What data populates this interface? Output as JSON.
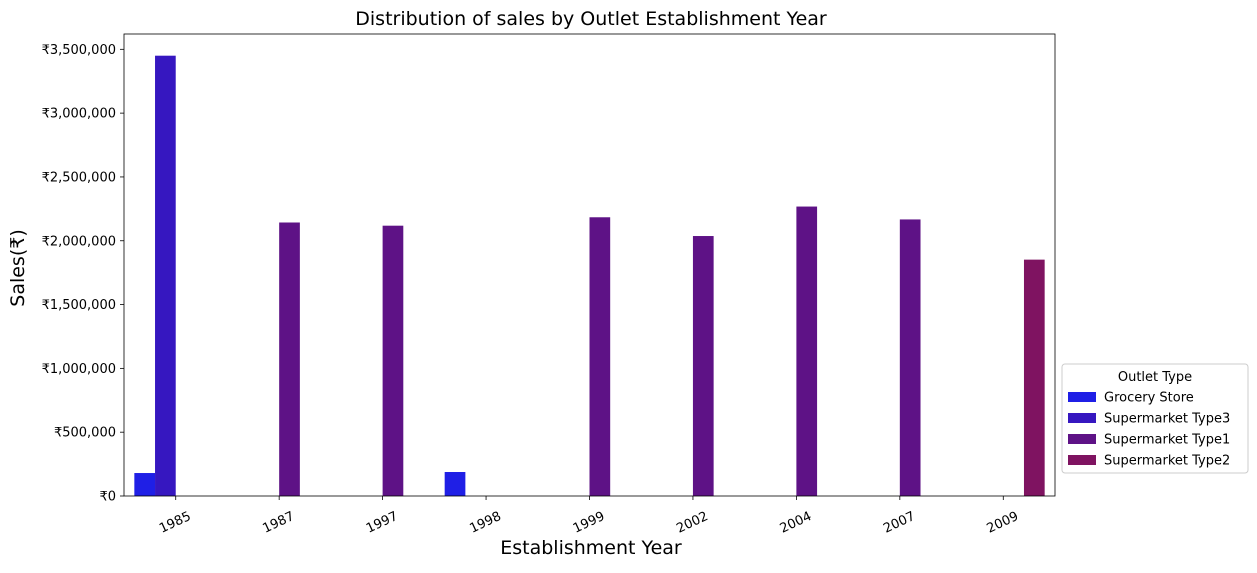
{
  "chart_data": {
    "type": "bar",
    "title": "Distribution of sales by Outlet Establishment Year",
    "xlabel": "Establishment Year",
    "ylabel": "Sales(₹)",
    "categories": [
      "1985",
      "1987",
      "1997",
      "1998",
      "1999",
      "2002",
      "2004",
      "2007",
      "2009"
    ],
    "ylim": [
      0,
      3620000
    ],
    "yticks": [
      0,
      500000,
      1000000,
      1500000,
      2000000,
      2500000,
      3000000,
      3500000
    ],
    "ytick_labels": [
      "₹0",
      "₹500,000",
      "₹1,000,000",
      "₹1,500,000",
      "₹2,000,000",
      "₹2,500,000",
      "₹3,000,000",
      "₹3,500,000"
    ],
    "grid": false,
    "legend": {
      "title": "Outlet Type",
      "placement": "outside-right-bottom"
    },
    "series": [
      {
        "name": "Grocery Store",
        "color": "#1f1fe6",
        "values": [
          180000,
          null,
          null,
          188000,
          null,
          null,
          null,
          null,
          null
        ]
      },
      {
        "name": "Supermarket Type3",
        "color": "#3617c0",
        "values": [
          3450000,
          null,
          null,
          null,
          null,
          null,
          null,
          null,
          null
        ]
      },
      {
        "name": "Supermarket Type1",
        "color": "#5e1286",
        "values": [
          null,
          2143000,
          2118000,
          null,
          2184000,
          2037000,
          2268000,
          2167000,
          null
        ]
      },
      {
        "name": "Supermarket Type2",
        "color": "#7f1361",
        "values": [
          null,
          null,
          null,
          null,
          null,
          null,
          null,
          null,
          1852000
        ]
      }
    ]
  }
}
